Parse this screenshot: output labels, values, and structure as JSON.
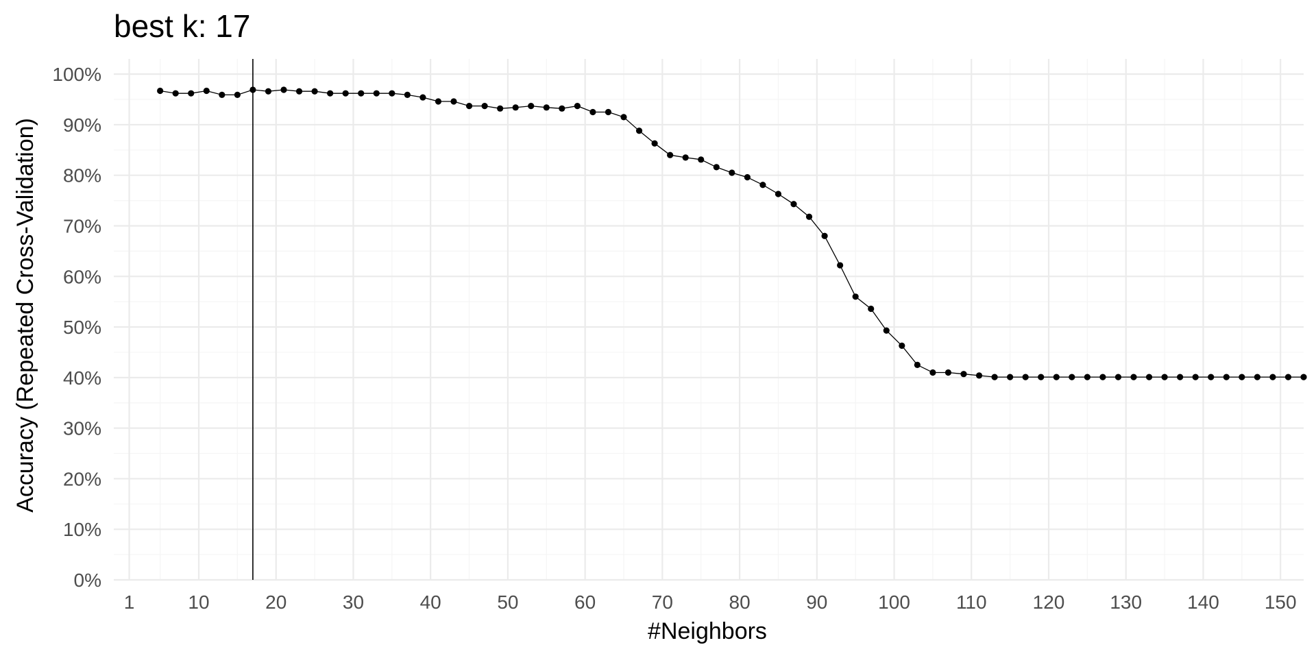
{
  "chart_data": {
    "type": "line",
    "title": "best k: 17",
    "xlabel": "#Neighbors",
    "ylabel": "Accuracy (Repeated Cross-Validation)",
    "xlim": [
      -1,
      153
    ],
    "ylim": [
      0,
      1.03
    ],
    "x_ticks": [
      1,
      10,
      20,
      30,
      40,
      50,
      60,
      70,
      80,
      90,
      100,
      110,
      120,
      130,
      140,
      150
    ],
    "x_tick_labels": [
      "1",
      "10",
      "20",
      "30",
      "40",
      "50",
      "60",
      "70",
      "80",
      "90",
      "100",
      "110",
      "120",
      "130",
      "140",
      "150"
    ],
    "y_ticks": [
      0,
      0.1,
      0.2,
      0.3,
      0.4,
      0.5,
      0.6,
      0.7,
      0.8,
      0.9,
      1.0
    ],
    "y_tick_labels": [
      "0%",
      "10%",
      "20%",
      "30%",
      "40%",
      "50%",
      "60%",
      "70%",
      "80%",
      "90%",
      "100%"
    ],
    "best_k": 17,
    "grid": true,
    "legend": "none",
    "colors": {
      "line": "#000000",
      "point": "#000000",
      "grid_major": "#ebebeb",
      "grid_minor": "#f5f5f5"
    },
    "series": [
      {
        "x": [
          5,
          7,
          9,
          11,
          13,
          15,
          17,
          19,
          21,
          23,
          25,
          27,
          29,
          31,
          33,
          35,
          37,
          39,
          41,
          43,
          45,
          47,
          49,
          51,
          53,
          55,
          57,
          59,
          61,
          63,
          65,
          67,
          69,
          71,
          73,
          75,
          77,
          79,
          81,
          83,
          85,
          87,
          89,
          91,
          93,
          95,
          97,
          99,
          101,
          103,
          105,
          107,
          109,
          111,
          113,
          115,
          117,
          119,
          121,
          123,
          125,
          127,
          129,
          131,
          133,
          135,
          137,
          139,
          141,
          143,
          145,
          147,
          149,
          151,
          153
        ],
        "values": [
          0.967,
          0.962,
          0.962,
          0.967,
          0.959,
          0.959,
          0.969,
          0.966,
          0.969,
          0.966,
          0.966,
          0.962,
          0.962,
          0.962,
          0.962,
          0.962,
          0.959,
          0.954,
          0.946,
          0.946,
          0.937,
          0.937,
          0.932,
          0.934,
          0.937,
          0.934,
          0.932,
          0.937,
          0.925,
          0.925,
          0.915,
          0.888,
          0.863,
          0.84,
          0.835,
          0.831,
          0.816,
          0.805,
          0.796,
          0.781,
          0.763,
          0.743,
          0.718,
          0.68,
          0.622,
          0.56,
          0.536,
          0.493,
          0.463,
          0.425,
          0.41,
          0.41,
          0.407,
          0.404,
          0.401,
          0.401,
          0.401,
          0.401,
          0.401,
          0.401,
          0.401,
          0.401,
          0.401,
          0.401,
          0.401,
          0.401,
          0.401,
          0.401,
          0.401,
          0.401,
          0.401,
          0.401,
          0.401,
          0.401,
          0.401
        ]
      }
    ]
  }
}
